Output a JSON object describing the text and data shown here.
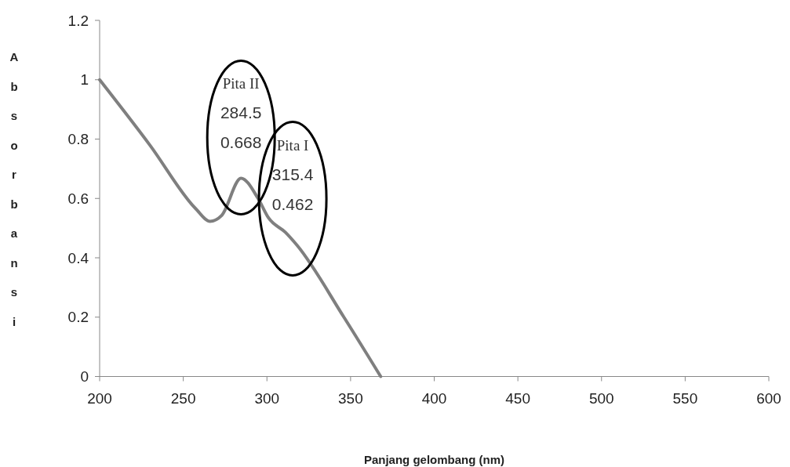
{
  "chart_data": {
    "type": "line",
    "xlabel": "Panjang gelombang (nm)",
    "ylabel": "Absorbansi",
    "xlim": [
      200,
      600
    ],
    "xticks": [
      200,
      250,
      300,
      350,
      400,
      450,
      500,
      550,
      600
    ],
    "ylim": [
      0,
      1.2
    ],
    "yticks": [
      0,
      0.2,
      0.4,
      0.6,
      0.8,
      1,
      1.2
    ],
    "grid": false,
    "marker": "none",
    "line_style": "solid",
    "series": [
      {
        "color": "#7f7f7f",
        "x": [
          200,
          230,
          257.5,
          266,
          273,
          284.5,
          294.7,
          301,
          311,
          318,
          346,
          368
        ],
        "values": [
          1.0,
          0.78,
          0.565,
          0.523,
          0.543,
          0.668,
          0.6,
          0.534,
          0.486,
          0.442,
          0.2,
          0
        ]
      }
    ],
    "annotations": [
      {
        "text": "Pita II\n284.5\n0.668",
        "x": 284.5,
        "y": 0.668
      },
      {
        "text": "Pita I\n315.4\n0.462",
        "x": 315.4,
        "y": 0.462
      }
    ]
  }
}
